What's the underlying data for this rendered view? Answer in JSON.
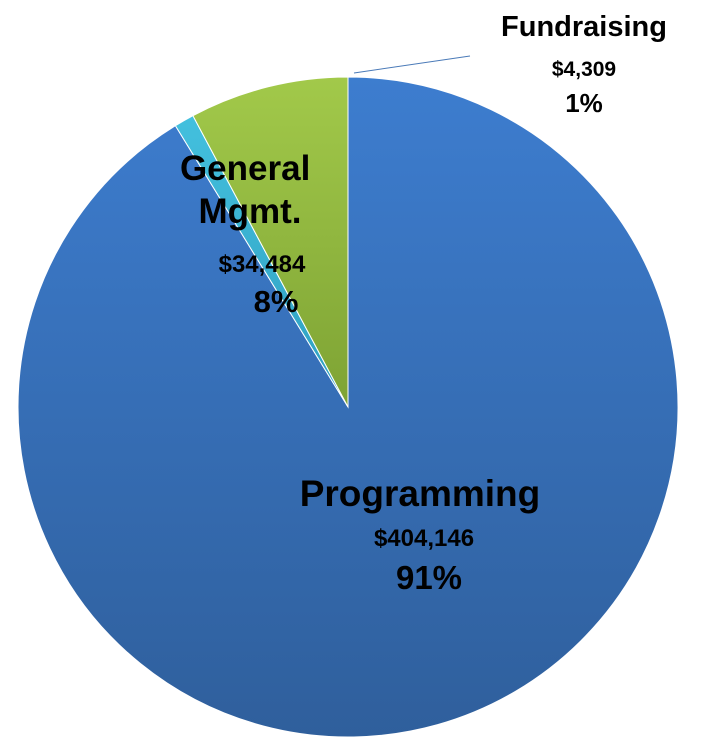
{
  "chart_data": {
    "type": "pie",
    "title": "",
    "start_angle_deg": 0,
    "direction": "clockwise",
    "slices": [
      {
        "label": "Programming",
        "value": 404146,
        "value_text": "$404,146",
        "percent_text": "91%",
        "color": "#3a70b8"
      },
      {
        "label": "Fundraising",
        "value": 4309,
        "value_text": "$4,309",
        "percent_text": "1%",
        "color": "#3cb4d4"
      },
      {
        "label": "General Mgmt.",
        "value": 34484,
        "value_text": "$34,484",
        "percent_text": "8%",
        "color": "#92bb3e"
      }
    ]
  }
}
